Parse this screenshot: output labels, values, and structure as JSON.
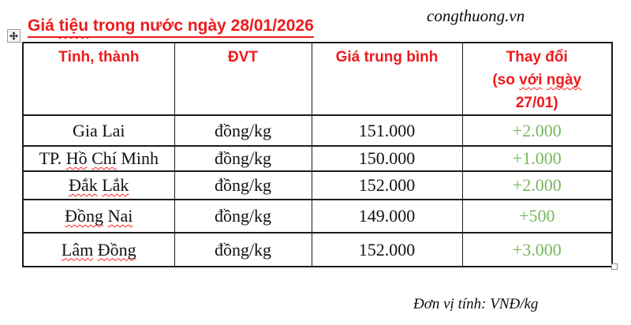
{
  "colors": {
    "red": "#ed1a1c",
    "green": "#77b75c",
    "border": "#1c1c1c",
    "squiggle": "#ff1f1f",
    "ink": "#111111"
  },
  "header": {
    "title_parts": [
      {
        "t": "Giá "
      },
      {
        "t": "tiệu",
        "m": true
      },
      {
        "t": " trong nước ngày 28/01/2026"
      }
    ],
    "site": "congthuong.vn"
  },
  "icons": {
    "move_handle": "move-cross-icon",
    "resize_handle": "resize-square-icon"
  },
  "table": {
    "headers": [
      {
        "name": "province",
        "lines": [
          [
            {
              "t": "Tỉnh, thành"
            }
          ]
        ]
      },
      {
        "name": "unit",
        "lines": [
          [
            {
              "t": "ĐVT"
            }
          ]
        ]
      },
      {
        "name": "avg-price",
        "lines": [
          [
            {
              "t": "Giá trung bình"
            }
          ]
        ]
      },
      {
        "name": "change",
        "lines": [
          [
            {
              "t": "Thay đổi"
            }
          ],
          [
            {
              "t": "(so "
            },
            {
              "t": "với",
              "m": true
            },
            {
              "t": " "
            },
            {
              "t": "ngày",
              "m": true
            }
          ],
          [
            {
              "t": "27/01)"
            }
          ]
        ]
      }
    ],
    "rows": [
      {
        "province": [
          {
            "t": "Gia Lai"
          }
        ],
        "unit": "đồng/kg",
        "price": "151.000",
        "change": "+2.000"
      },
      {
        "province": [
          {
            "t": "TP. "
          },
          {
            "t": "Hồ",
            "m": true
          },
          {
            "t": " "
          },
          {
            "t": "Chí",
            "m": true
          },
          {
            "t": " Minh"
          }
        ],
        "unit": "đồng/kg",
        "price": "150.000",
        "change": "+1.000"
      },
      {
        "province": [
          {
            "t": "Đắk",
            "m": true
          },
          {
            "t": " "
          },
          {
            "t": "Lắk",
            "m": true
          }
        ],
        "unit": "đồng/kg",
        "price": "152.000",
        "change": "+2.000"
      },
      {
        "province": [
          {
            "t": "Đồng",
            "m": true
          },
          {
            "t": " "
          },
          {
            "t": "Nai",
            "m": true
          }
        ],
        "unit": "đồng/kg",
        "price": "149.000",
        "change": "+500"
      },
      {
        "province": [
          {
            "t": "Lâm",
            "m": true
          },
          {
            "t": " "
          },
          {
            "t": "Đồng",
            "m": true
          }
        ],
        "unit": "đồng/kg",
        "price": "152.000",
        "change": "+3.000"
      }
    ]
  },
  "footer": {
    "unit_note": "Đơn vị tính: VNĐ/kg"
  }
}
